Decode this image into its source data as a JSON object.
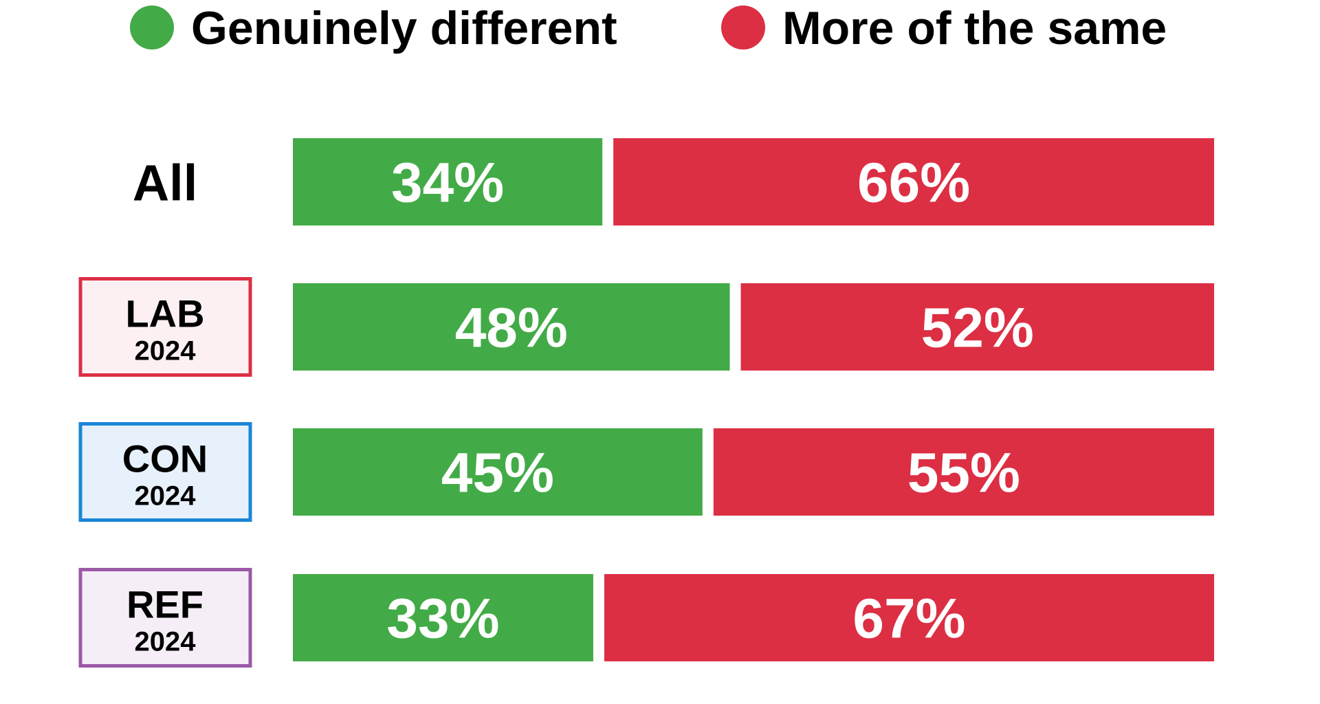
{
  "chart_data": {
    "type": "bar",
    "orientation": "horizontal",
    "stacked": true,
    "normalized_to": 100,
    "xlim": [
      0,
      100
    ],
    "legend_position": "top",
    "grid": false,
    "categories": [
      {
        "label": "All",
        "year": "",
        "boxed": false
      },
      {
        "label": "LAB",
        "year": "2024",
        "boxed": true,
        "border_color": "#dc2f44",
        "fill_color": "#fdf0f2"
      },
      {
        "label": "CON",
        "year": "2024",
        "boxed": true,
        "border_color": "#1a86d6",
        "fill_color": "#e6f1fb"
      },
      {
        "label": "REF",
        "year": "2024",
        "boxed": true,
        "border_color": "#9b59a6",
        "fill_color": "#f5eef7"
      }
    ],
    "series": [
      {
        "name": "Genuinely different",
        "color": "#42ab47",
        "values": [
          34,
          48,
          45,
          33
        ],
        "labels": [
          "34%",
          "48%",
          "45%",
          "33%"
        ]
      },
      {
        "name": "More of the same",
        "color": "#dc2f44",
        "values": [
          66,
          52,
          55,
          67
        ],
        "labels": [
          "66%",
          "52%",
          "55%",
          "67%"
        ]
      }
    ]
  }
}
